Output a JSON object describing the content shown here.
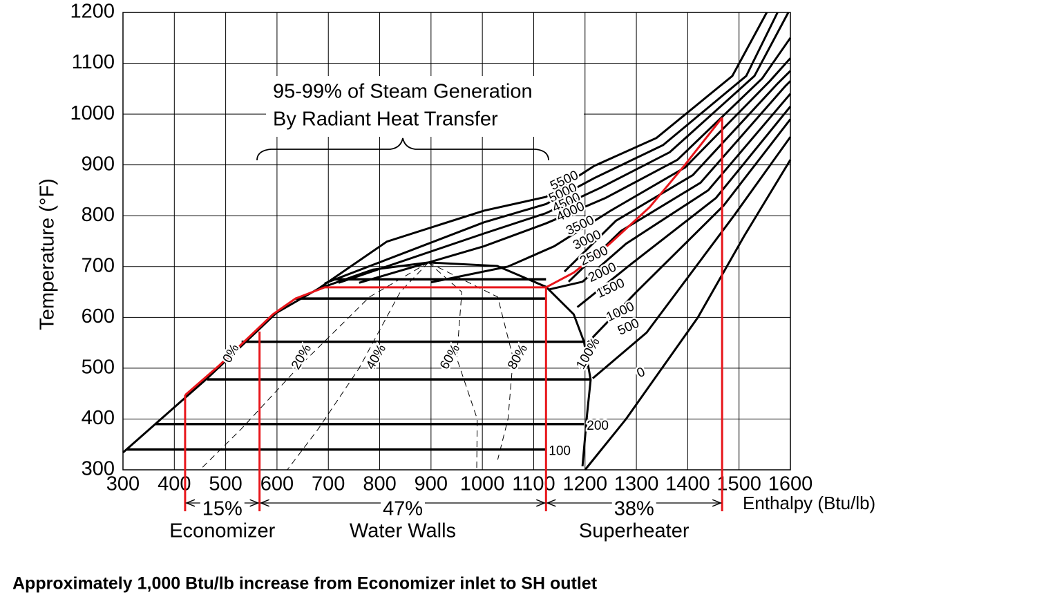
{
  "chart_data": {
    "type": "line",
    "xlabel": "Enthalpy  (Btu/lb)",
    "ylabel": "Temperature (°F)",
    "xlim": [
      300,
      1600
    ],
    "ylim": [
      300,
      1200
    ],
    "xticks": [
      300,
      400,
      500,
      600,
      700,
      800,
      900,
      1000,
      1100,
      1200,
      1300,
      1400,
      1500,
      1600
    ],
    "yticks": [
      300,
      400,
      500,
      600,
      700,
      800,
      900,
      1000,
      1100,
      1200
    ],
    "grid": true,
    "annotation": [
      "95-99% of Steam Generation",
      "By Radiant Heat Transfer"
    ],
    "footnote": "Approximately 1,000 Btu/lb increase from Economizer inlet to SH outlet",
    "saturation_dome": {
      "color": "#000000",
      "x": [
        300,
        464,
        599,
        680,
        787,
        895,
        1029,
        1124,
        1178,
        1198,
        1211,
        1204,
        1195
      ],
      "values": [
        334,
        480,
        609,
        656,
        694,
        708,
        701,
        660,
        606,
        552,
        477,
        409,
        307
      ]
    },
    "isobars": [
      {
        "name": "5500",
        "x": [
          680,
          814,
          1003,
          1124,
          1218,
          1339,
          1487,
          1554
        ],
        "values": [
          656,
          749,
          810,
          837,
          898,
          953,
          1075,
          1200
        ]
      },
      {
        "name": "5000",
        "x": [
          693,
          1003,
          1124,
          1218,
          1352,
          1514,
          1575
        ],
        "values": [
          667,
          787,
          823,
          874,
          939,
          1075,
          1200
        ]
      },
      {
        "name": "4500",
        "x": [
          720,
          1003,
          1124,
          1230,
          1365,
          1530,
          1596
        ],
        "values": [
          668,
          765,
          805,
          855,
          925,
          1075,
          1200
        ]
      },
      {
        "name": "4000",
        "x": [
          760,
          1003,
          1124,
          1240,
          1380,
          1545,
          1600
        ],
        "values": [
          668,
          740,
          785,
          835,
          910,
          1070,
          1150
        ]
      },
      {
        "name": "3500",
        "x": [
          900,
          1050,
          1140,
          1250,
          1395,
          1560,
          1600
        ],
        "values": [
          669,
          700,
          740,
          810,
          895,
          1065,
          1110
        ]
      },
      {
        "name": "3000",
        "x": [
          1160,
          1260,
          1410,
          1575,
          1600
        ],
        "values": [
          690,
          790,
          880,
          1060,
          1085
        ]
      },
      {
        "name": "2500",
        "x": [
          1168,
          1270,
          1425,
          1590,
          1600
        ],
        "values": [
          670,
          770,
          865,
          1055,
          1065
        ]
      },
      {
        "name": "2000",
        "x": [
          1130,
          1195,
          1280,
          1440,
          1600
        ],
        "values": [
          655,
          670,
          745,
          850,
          1040
        ]
      },
      {
        "name": "1500",
        "x": [
          1185,
          1290,
          1455,
          1600
        ],
        "values": [
          620,
          705,
          835,
          1015
        ]
      },
      {
        "name": "1000",
        "x": [
          1205,
          1300,
          1470,
          1600
        ],
        "values": [
          550,
          650,
          820,
          990
        ]
      },
      {
        "name": "500",
        "x": [
          1215,
          1320,
          1490,
          1600
        ],
        "values": [
          480,
          570,
          800,
          955
        ]
      },
      {
        "name": "0",
        "x": [
          1200,
          1280,
          1420,
          1510,
          1600
        ],
        "values": [
          300,
          400,
          600,
          760,
          910
        ]
      }
    ],
    "saturation_lines": [
      {
        "x": [
          706,
          1124
        ],
        "values": [
          675,
          675
        ]
      },
      {
        "x": [
          636,
          1124
        ],
        "values": [
          637,
          637
        ]
      },
      {
        "x": [
          531,
          1198
        ],
        "values": [
          552,
          552
        ]
      },
      {
        "x": [
          464,
          1211
        ],
        "values": [
          478,
          478
        ]
      },
      {
        "name": "200",
        "x": [
          363,
          1198
        ],
        "values": [
          390,
          390
        ]
      },
      {
        "name": "100",
        "x": [
          307,
          1124
        ],
        "values": [
          340,
          340
        ]
      }
    ],
    "quality_labels": [
      "0%",
      "20%",
      "40%",
      "60%",
      "80%",
      "100%"
    ],
    "quality_lines": [
      {
        "x": [
          895,
          780,
          640,
          530,
          450
        ],
        "values": [
          708,
          640,
          500,
          380,
          300
        ]
      },
      {
        "x": [
          895,
          840,
          760,
          680,
          620
        ],
        "values": [
          708,
          650,
          500,
          380,
          300
        ]
      },
      {
        "x": [
          895,
          960,
          950,
          990,
          989
        ],
        "values": [
          708,
          650,
          520,
          400,
          300
        ]
      },
      {
        "x": [
          895,
          1030,
          1060,
          1050,
          1030
        ],
        "values": [
          708,
          640,
          520,
          400,
          320
        ]
      }
    ],
    "process": {
      "color": "#e8161b",
      "x": [
        421,
        486,
        592,
        636,
        693,
        1124,
        1178,
        1245,
        1326,
        1393,
        1467
      ],
      "values": [
        447,
        504,
        606,
        637,
        659,
        659,
        688,
        742,
        817,
        898,
        993
      ]
    },
    "dividers": {
      "color": "#e8161b",
      "x": [
        421,
        566,
        1124,
        1467
      ],
      "values": [
        447,
        572,
        659,
        993
      ]
    },
    "sections": [
      {
        "percent": "15%",
        "name": "Economizer"
      },
      {
        "percent": "47%",
        "name": "Water Walls"
      },
      {
        "percent": "38%",
        "name": "Superheater"
      }
    ]
  }
}
